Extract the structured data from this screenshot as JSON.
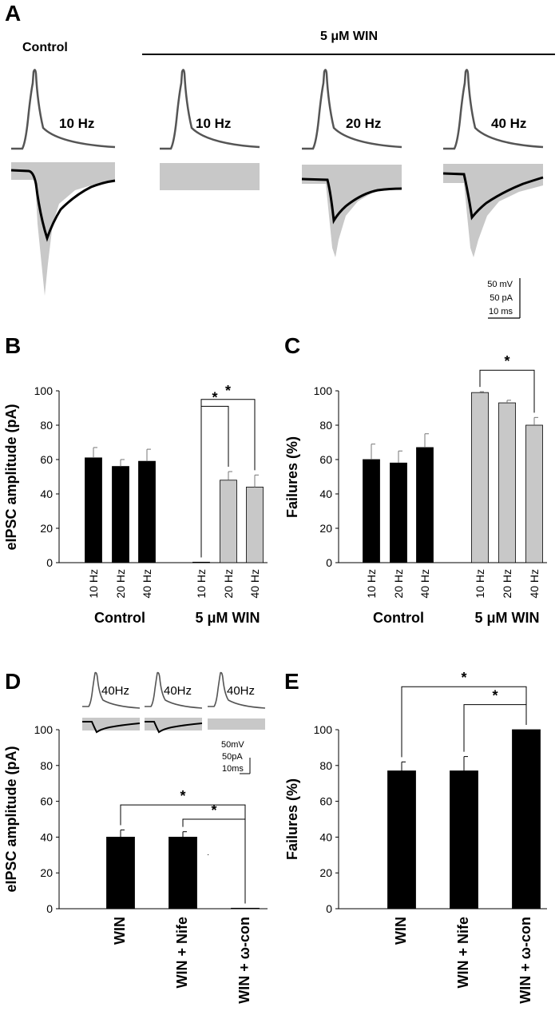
{
  "panel_a": {
    "letter": "A",
    "control_label": "Control",
    "win_label": "5 μM WIN",
    "trace_labels": [
      "10 Hz",
      "10 Hz",
      "20 Hz",
      "40 Hz"
    ],
    "scale_bar": [
      "50 mV",
      "50 pA",
      "10 ms"
    ]
  },
  "panel_b": {
    "letter": "B"
  },
  "panel_c": {
    "letter": "C"
  },
  "panel_d": {
    "letter": "D",
    "inset_labels": [
      "40Hz",
      "40Hz",
      "40Hz"
    ],
    "scale_bar": [
      "50mV",
      "50pA",
      "10ms"
    ]
  },
  "panel_e": {
    "letter": "E"
  },
  "colors": {
    "control": "#000000",
    "win": "#c8c8c8",
    "trace_gray": "#c8c8c8",
    "ap_trace": "#555555"
  },
  "chart_data": [
    {
      "id": "B",
      "type": "bar",
      "ylabel": "eIPSC amplitude (pA)",
      "ylim": [
        0,
        100
      ],
      "yticks": [
        0,
        20,
        40,
        60,
        80,
        100
      ],
      "groups": [
        "Control",
        "5 μM WIN"
      ],
      "categories": [
        "10 Hz",
        "20 Hz",
        "40 Hz",
        "10 Hz",
        "20 Hz",
        "40 Hz"
      ],
      "values": [
        61,
        56,
        59,
        0.3,
        48,
        44
      ],
      "errors": [
        6,
        4,
        7,
        0,
        5,
        7
      ],
      "group_of_bar": [
        0,
        0,
        0,
        1,
        1,
        1
      ],
      "significance": [
        {
          "from": 3,
          "to": 4,
          "label": "*",
          "y": 91
        },
        {
          "from": 3,
          "to": 5,
          "label": "*",
          "y": 95
        }
      ]
    },
    {
      "id": "C",
      "type": "bar",
      "ylabel": "Failures (%)",
      "ylim": [
        0,
        100
      ],
      "yticks": [
        0,
        20,
        40,
        60,
        80,
        100
      ],
      "groups": [
        "Control",
        "5 μM WIN"
      ],
      "categories": [
        "10 Hz",
        "20 Hz",
        "40 Hz",
        "10 Hz",
        "20 Hz",
        "40 Hz"
      ],
      "values": [
        60,
        58,
        67,
        99,
        93,
        80
      ],
      "errors": [
        9,
        7,
        8,
        0.5,
        1.5,
        4.5
      ],
      "group_of_bar": [
        0,
        0,
        0,
        1,
        1,
        1
      ],
      "significance": [
        {
          "from": 3,
          "to": 5,
          "label": "*",
          "y": 112
        }
      ]
    },
    {
      "id": "D",
      "type": "bar",
      "ylabel": "eIPSC amplitude (pA)",
      "ylim": [
        0,
        100
      ],
      "yticks": [
        0,
        20,
        40,
        60,
        80,
        100
      ],
      "categories": [
        "WIN",
        "WIN + Nife",
        "WIN + ω-con"
      ],
      "values": [
        40,
        40,
        0.3
      ],
      "errors": [
        4,
        3,
        0
      ],
      "significance": [
        {
          "from": 0,
          "to": 2,
          "label": "*",
          "y": 58
        },
        {
          "from": 1,
          "to": 2,
          "label": "*",
          "y": 50
        }
      ]
    },
    {
      "id": "E",
      "type": "bar",
      "ylabel": "Failures (%)",
      "ylim": [
        0,
        100
      ],
      "yticks": [
        0,
        20,
        40,
        60,
        80,
        100
      ],
      "categories": [
        "WIN",
        "WIN + Nife",
        "WIN + ω-con"
      ],
      "values": [
        77,
        77,
        100
      ],
      "errors": [
        5,
        8,
        0
      ],
      "significance": [
        {
          "from": 0,
          "to": 2,
          "label": "*",
          "y": 124
        },
        {
          "from": 1,
          "to": 2,
          "label": "*",
          "y": 114
        }
      ]
    }
  ]
}
